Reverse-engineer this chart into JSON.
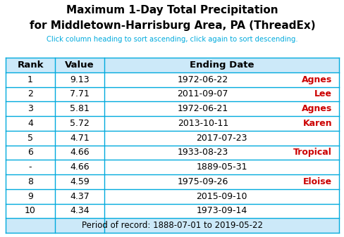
{
  "title_line1": "Maximum 1-Day Total Precipitation",
  "title_line2": "for Middletown-Harrisburg Area, PA (ThreadEx)",
  "subtitle": "Click column heading to sort ascending, click again to sort descending.",
  "col_headers": [
    "Rank",
    "Value",
    "Ending Date"
  ],
  "rows": [
    {
      "rank": "1",
      "value": "9.13",
      "date": "1972-06-22",
      "storm": "Agnes",
      "storm_color": "#cc0000"
    },
    {
      "rank": "2",
      "value": "7.71",
      "date": "2011-09-07",
      "storm": "Lee",
      "storm_color": "#cc0000"
    },
    {
      "rank": "3",
      "value": "5.81",
      "date": "1972-06-21",
      "storm": "Agnes",
      "storm_color": "#cc0000"
    },
    {
      "rank": "4",
      "value": "5.72",
      "date": "2013-10-11",
      "storm": "Karen",
      "storm_color": "#cc0000"
    },
    {
      "rank": "5",
      "value": "4.71",
      "date": "2017-07-23",
      "storm": "",
      "storm_color": "#cc0000"
    },
    {
      "rank": "6",
      "value": "4.66",
      "date": "1933-08-23",
      "storm": "Tropical",
      "storm_color": "#cc0000"
    },
    {
      "rank": "-",
      "value": "4.66",
      "date": "1889-05-31",
      "storm": "",
      "storm_color": "#cc0000"
    },
    {
      "rank": "8",
      "value": "4.59",
      "date": "1975-09-26",
      "storm": "Eloise",
      "storm_color": "#cc0000"
    },
    {
      "rank": "9",
      "value": "4.37",
      "date": "2015-09-10",
      "storm": "",
      "storm_color": "#cc0000"
    },
    {
      "rank": "10",
      "value": "4.34",
      "date": "1973-09-14",
      "storm": "",
      "storm_color": "#cc0000"
    }
  ],
  "footer": "Period of record: 1888-07-01 to 2019-05-22",
  "header_bg": "#cce9f9",
  "row_bg": "#ffffff",
  "border_color": "#00aadd",
  "title_color": "#000000",
  "subtitle_color": "#00aadd",
  "header_text_color": "#000000",
  "cell_text_color": "#000000",
  "figwidth": 4.89,
  "figheight": 3.37,
  "dpi": 100,
  "title_fontsize": 11.0,
  "subtitle_fontsize": 7.2,
  "header_fontsize": 9.5,
  "cell_fontsize": 9.0,
  "footer_fontsize": 8.5
}
